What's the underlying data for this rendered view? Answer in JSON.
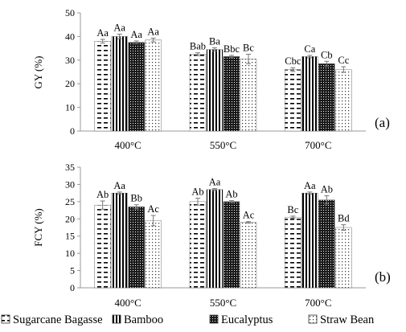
{
  "chart_data": [
    {
      "type": "bar",
      "panel_label": "(a)",
      "ylabel": "GY (%)",
      "ylim": [
        0,
        50
      ],
      "yticks": [
        "0",
        "10",
        "20",
        "30",
        "40",
        "50"
      ],
      "categories": [
        "400°C",
        "550°C",
        "700°C"
      ],
      "error_bars": true,
      "grid": false,
      "series": [
        {
          "name": "Sugarcane Bagasse",
          "values": [
            38,
            32.5,
            26
          ],
          "errors": [
            0.8,
            0.6,
            0.8
          ],
          "labels": [
            "Aa",
            "Bab",
            "Cbc"
          ]
        },
        {
          "name": "Bamboo",
          "values": [
            40,
            34.5,
            31.5
          ],
          "errors": [
            1.0,
            0.7,
            0.5
          ],
          "labels": [
            "Aa",
            "Ba",
            "Ca"
          ]
        },
        {
          "name": "Eucalyptus",
          "values": [
            37.5,
            31.5,
            28.5
          ],
          "errors": [
            0.6,
            0.5,
            1.0
          ],
          "labels": [
            "Aa",
            "Bbc",
            "Cb"
          ]
        },
        {
          "name": "Straw Bean",
          "values": [
            38.5,
            30.5,
            26
          ],
          "errors": [
            0.8,
            2.0,
            1.2
          ],
          "labels": [
            "Aa",
            "Bc",
            "Cc"
          ]
        }
      ]
    },
    {
      "type": "bar",
      "panel_label": "(b)",
      "ylabel": "FCY (%)",
      "ylim": [
        0,
        35
      ],
      "yticks": [
        "0",
        "5",
        "10",
        "15",
        "20",
        "25",
        "30",
        "35"
      ],
      "categories": [
        "400°C",
        "550°C",
        "700°C"
      ],
      "error_bars": true,
      "grid": false,
      "series": [
        {
          "name": "Sugarcane Bagasse",
          "values": [
            24,
            25,
            20.5
          ],
          "errors": [
            1.2,
            1.0,
            0.3
          ],
          "labels": [
            "Ab",
            "Ab",
            "Bc"
          ]
        },
        {
          "name": "Bamboo",
          "values": [
            27.5,
            28.5,
            27.5
          ],
          "errors": [
            0.3,
            0.3,
            0.3
          ],
          "labels": [
            "Aa",
            "Aa",
            "Aa"
          ]
        },
        {
          "name": "Eucalyptus",
          "values": [
            23.5,
            25,
            25.5
          ],
          "errors": [
            0.6,
            0.3,
            1.2
          ],
          "labels": [
            "Bb",
            "Ab",
            "Ab"
          ]
        },
        {
          "name": "Straw Bean",
          "values": [
            19.5,
            19,
            17.5
          ],
          "errors": [
            1.5,
            0.2,
            0.8
          ],
          "labels": [
            "Ac",
            "Ac",
            "Bd"
          ]
        }
      ]
    }
  ],
  "legend": {
    "placement": "bottom",
    "items": [
      {
        "name": "Sugarcane Bagasse",
        "pattern": "dashes"
      },
      {
        "name": "Bamboo",
        "pattern": "vertical-lines"
      },
      {
        "name": "Eucalyptus",
        "pattern": "dense-checker"
      },
      {
        "name": "Straw Bean",
        "pattern": "sparse-dots"
      }
    ]
  }
}
